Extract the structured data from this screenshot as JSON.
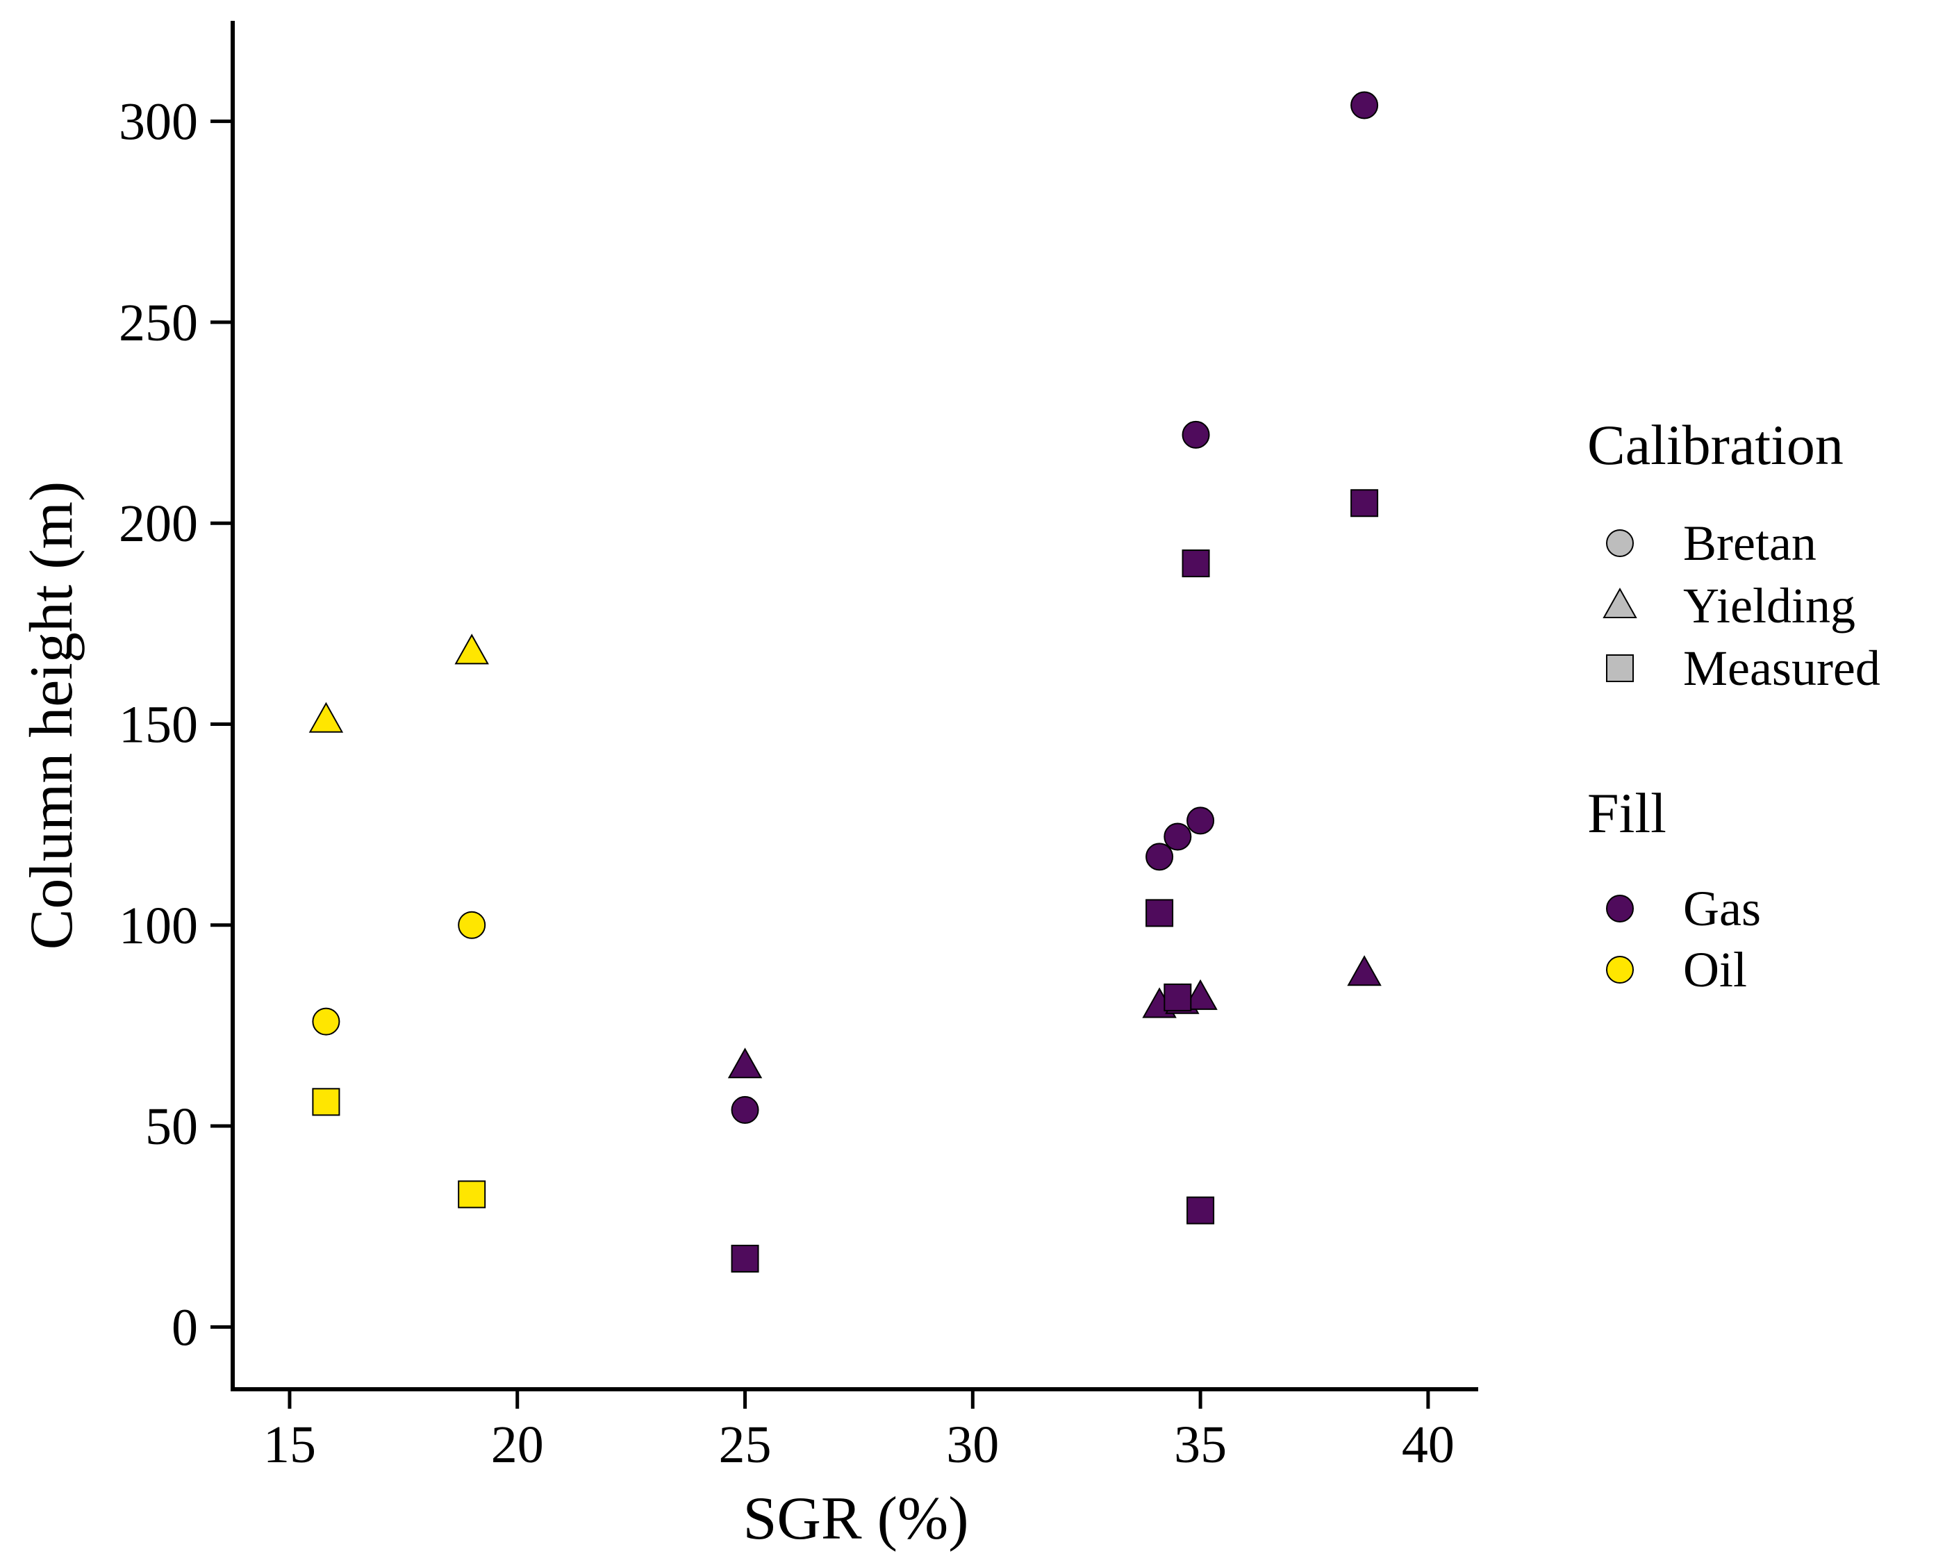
{
  "chart_data": {
    "type": "scatter",
    "xlabel": "SGR (%)",
    "ylabel": "Column height (m)",
    "xlim": [
      13.75,
      41.1
    ],
    "ylim": [
      -15.5,
      325
    ],
    "xticks": [
      15,
      20,
      25,
      30,
      35,
      40
    ],
    "yticks": [
      0,
      50,
      100,
      150,
      200,
      250,
      300
    ],
    "legend": {
      "placement": "right",
      "calibration_title": "Calibration",
      "calibration": [
        {
          "label": "Bretan",
          "shape": "circle"
        },
        {
          "label": "Yielding",
          "shape": "triangle"
        },
        {
          "label": "Measured",
          "shape": "square"
        }
      ],
      "fill_title": "Fill",
      "fill": [
        {
          "label": "Gas",
          "color": "#4f0b5c"
        },
        {
          "label": "Oil",
          "color": "#ffe600"
        }
      ]
    },
    "points": [
      {
        "x": 15.8,
        "y": 76,
        "calibration": "Bretan",
        "fill": "Oil"
      },
      {
        "x": 19.0,
        "y": 100,
        "calibration": "Bretan",
        "fill": "Oil"
      },
      {
        "x": 15.8,
        "y": 151,
        "calibration": "Yielding",
        "fill": "Oil"
      },
      {
        "x": 19.0,
        "y": 168,
        "calibration": "Yielding",
        "fill": "Oil"
      },
      {
        "x": 15.8,
        "y": 56,
        "calibration": "Measured",
        "fill": "Oil"
      },
      {
        "x": 19.0,
        "y": 33,
        "calibration": "Measured",
        "fill": "Oil"
      },
      {
        "x": 25.0,
        "y": 54,
        "calibration": "Bretan",
        "fill": "Gas"
      },
      {
        "x": 25.0,
        "y": 65,
        "calibration": "Yielding",
        "fill": "Gas"
      },
      {
        "x": 25.0,
        "y": 17,
        "calibration": "Measured",
        "fill": "Gas"
      },
      {
        "x": 34.1,
        "y": 117,
        "calibration": "Bretan",
        "fill": "Gas"
      },
      {
        "x": 34.5,
        "y": 122,
        "calibration": "Bretan",
        "fill": "Gas"
      },
      {
        "x": 35.0,
        "y": 126,
        "calibration": "Bretan",
        "fill": "Gas"
      },
      {
        "x": 34.9,
        "y": 222,
        "calibration": "Bretan",
        "fill": "Gas"
      },
      {
        "x": 38.6,
        "y": 304,
        "calibration": "Bretan",
        "fill": "Gas"
      },
      {
        "x": 34.1,
        "y": 80,
        "calibration": "Yielding",
        "fill": "Gas"
      },
      {
        "x": 34.6,
        "y": 81,
        "calibration": "Yielding",
        "fill": "Gas"
      },
      {
        "x": 35.0,
        "y": 82,
        "calibration": "Yielding",
        "fill": "Gas"
      },
      {
        "x": 38.6,
        "y": 88,
        "calibration": "Yielding",
        "fill": "Gas"
      },
      {
        "x": 34.1,
        "y": 103,
        "calibration": "Measured",
        "fill": "Gas"
      },
      {
        "x": 34.5,
        "y": 82,
        "calibration": "Measured",
        "fill": "Gas"
      },
      {
        "x": 34.9,
        "y": 190,
        "calibration": "Measured",
        "fill": "Gas"
      },
      {
        "x": 35.0,
        "y": 29,
        "calibration": "Measured",
        "fill": "Gas"
      },
      {
        "x": 38.6,
        "y": 205,
        "calibration": "Measured",
        "fill": "Gas"
      }
    ]
  }
}
